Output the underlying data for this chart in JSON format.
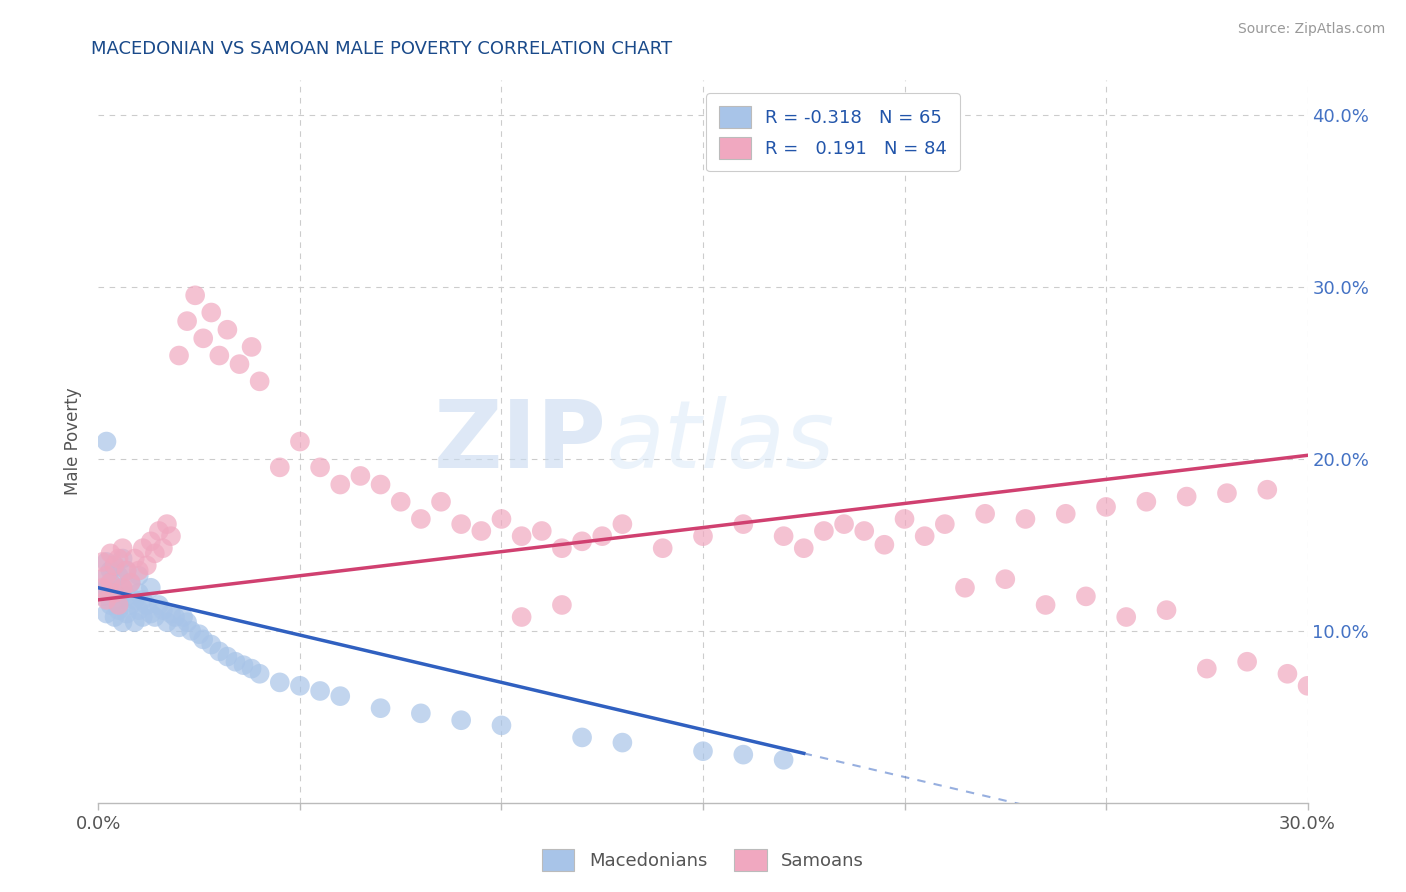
{
  "title": "MACEDONIAN VS SAMOAN MALE POVERTY CORRELATION CHART",
  "source": "Source: ZipAtlas.com",
  "ylabel": "Male Poverty",
  "xlim": [
    0.0,
    0.3
  ],
  "ylim": [
    0.0,
    0.42
  ],
  "mac_color": "#a8c4e8",
  "sam_color": "#f0a8c0",
  "mac_line_color": "#3060c0",
  "sam_line_color": "#d04070",
  "title_color": "#1a4a8a",
  "source_color": "#999999",
  "background_color": "#ffffff",
  "grid_color": "#cccccc",
  "macedonians_x": [
    0.001,
    0.001,
    0.002,
    0.002,
    0.002,
    0.003,
    0.003,
    0.003,
    0.004,
    0.004,
    0.004,
    0.005,
    0.005,
    0.005,
    0.006,
    0.006,
    0.006,
    0.007,
    0.007,
    0.007,
    0.008,
    0.008,
    0.009,
    0.009,
    0.01,
    0.01,
    0.01,
    0.011,
    0.011,
    0.012,
    0.013,
    0.013,
    0.014,
    0.015,
    0.016,
    0.017,
    0.018,
    0.019,
    0.02,
    0.021,
    0.022,
    0.023,
    0.025,
    0.026,
    0.028,
    0.03,
    0.032,
    0.034,
    0.036,
    0.038,
    0.04,
    0.045,
    0.05,
    0.055,
    0.06,
    0.07,
    0.08,
    0.09,
    0.1,
    0.12,
    0.13,
    0.15,
    0.16,
    0.17,
    0.002
  ],
  "macedonians_y": [
    0.12,
    0.13,
    0.11,
    0.125,
    0.14,
    0.115,
    0.128,
    0.135,
    0.108,
    0.122,
    0.138,
    0.112,
    0.118,
    0.132,
    0.105,
    0.125,
    0.142,
    0.11,
    0.12,
    0.135,
    0.115,
    0.128,
    0.105,
    0.118,
    0.112,
    0.122,
    0.132,
    0.108,
    0.118,
    0.115,
    0.11,
    0.125,
    0.108,
    0.115,
    0.112,
    0.105,
    0.11,
    0.108,
    0.102,
    0.108,
    0.105,
    0.1,
    0.098,
    0.095,
    0.092,
    0.088,
    0.085,
    0.082,
    0.08,
    0.078,
    0.075,
    0.07,
    0.068,
    0.065,
    0.062,
    0.055,
    0.052,
    0.048,
    0.045,
    0.038,
    0.035,
    0.03,
    0.028,
    0.025,
    0.21
  ],
  "samoans_x": [
    0.001,
    0.001,
    0.002,
    0.002,
    0.003,
    0.003,
    0.004,
    0.004,
    0.005,
    0.005,
    0.006,
    0.006,
    0.007,
    0.008,
    0.009,
    0.01,
    0.011,
    0.012,
    0.013,
    0.014,
    0.015,
    0.016,
    0.017,
    0.018,
    0.02,
    0.022,
    0.024,
    0.026,
    0.028,
    0.03,
    0.032,
    0.035,
    0.038,
    0.04,
    0.045,
    0.05,
    0.055,
    0.06,
    0.065,
    0.07,
    0.075,
    0.08,
    0.085,
    0.09,
    0.095,
    0.1,
    0.105,
    0.11,
    0.115,
    0.12,
    0.125,
    0.13,
    0.14,
    0.15,
    0.16,
    0.17,
    0.175,
    0.18,
    0.185,
    0.19,
    0.2,
    0.21,
    0.22,
    0.23,
    0.24,
    0.25,
    0.26,
    0.27,
    0.28,
    0.29,
    0.105,
    0.115,
    0.195,
    0.205,
    0.215,
    0.225,
    0.235,
    0.245,
    0.255,
    0.265,
    0.275,
    0.285,
    0.295,
    0.3
  ],
  "samoans_y": [
    0.125,
    0.14,
    0.118,
    0.132,
    0.128,
    0.145,
    0.122,
    0.138,
    0.115,
    0.142,
    0.125,
    0.148,
    0.135,
    0.128,
    0.142,
    0.135,
    0.148,
    0.138,
    0.152,
    0.145,
    0.158,
    0.148,
    0.162,
    0.155,
    0.26,
    0.28,
    0.295,
    0.27,
    0.285,
    0.26,
    0.275,
    0.255,
    0.265,
    0.245,
    0.195,
    0.21,
    0.195,
    0.185,
    0.19,
    0.185,
    0.175,
    0.165,
    0.175,
    0.162,
    0.158,
    0.165,
    0.155,
    0.158,
    0.148,
    0.152,
    0.155,
    0.162,
    0.148,
    0.155,
    0.162,
    0.155,
    0.148,
    0.158,
    0.162,
    0.158,
    0.165,
    0.162,
    0.168,
    0.165,
    0.168,
    0.172,
    0.175,
    0.178,
    0.18,
    0.182,
    0.108,
    0.115,
    0.15,
    0.155,
    0.125,
    0.13,
    0.115,
    0.12,
    0.108,
    0.112,
    0.078,
    0.082,
    0.075,
    0.068
  ],
  "mac_line_x_end": 0.175,
  "sam_line_x_end": 0.3,
  "mac_intercept": 0.125,
  "mac_slope": -0.55,
  "sam_intercept": 0.118,
  "sam_slope": 0.28
}
